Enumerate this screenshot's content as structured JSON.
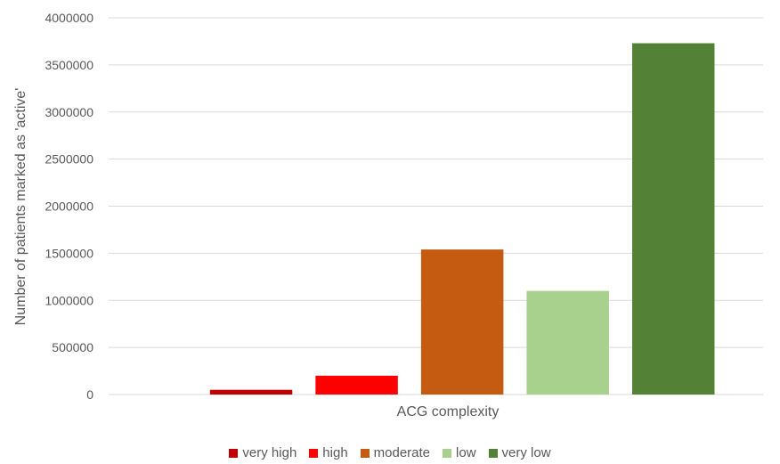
{
  "chart_data": {
    "type": "bar",
    "title": "",
    "xlabel": "ACG complexity",
    "ylabel": "Number of  patients marked as 'active'",
    "ylim": [
      0,
      4000000
    ],
    "yticks": [
      0,
      500000,
      1000000,
      1500000,
      2000000,
      2500000,
      3000000,
      3500000,
      4000000
    ],
    "grid": true,
    "legend_position": "bottom",
    "series": [
      {
        "name": "very high",
        "value": 50000,
        "color": "#c00000"
      },
      {
        "name": "high",
        "value": 200000,
        "color": "#ff0000"
      },
      {
        "name": "moderate",
        "value": 1540000,
        "color": "#c55a11"
      },
      {
        "name": "low",
        "value": 1100000,
        "color": "#a9d18e"
      },
      {
        "name": "very low",
        "value": 3730000,
        "color": "#538135"
      }
    ]
  }
}
